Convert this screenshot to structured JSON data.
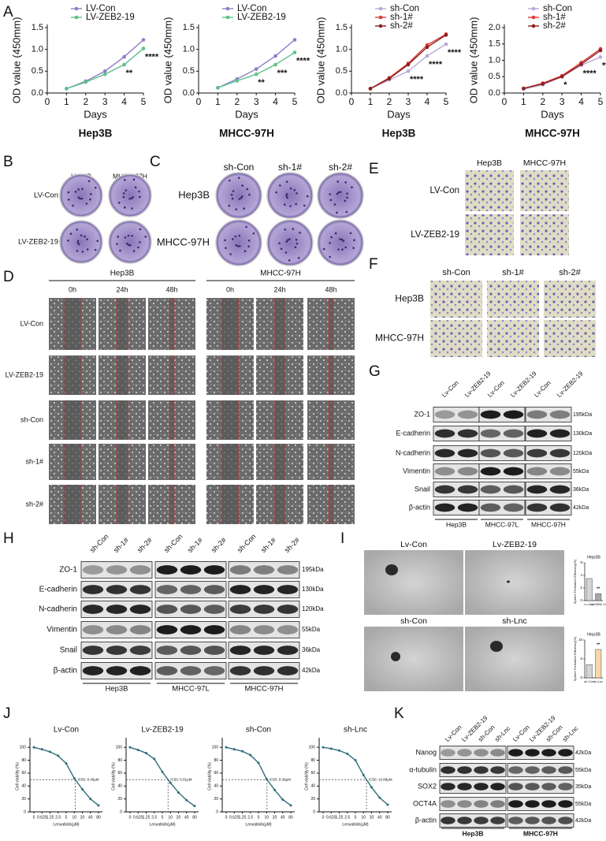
{
  "panel_labels": {
    "a": "A",
    "b": "B",
    "c": "C",
    "d": "D",
    "e": "E",
    "f": "F",
    "g": "G",
    "h": "H",
    "i": "I",
    "j": "J",
    "k": "K"
  },
  "chart_data": [
    {
      "type": "line",
      "caption": "Hep3B",
      "xlabel": "Days",
      "ylabel": "OD value (450mm)",
      "x": [
        1,
        2,
        3,
        4,
        5
      ],
      "xlim": [
        0,
        5
      ],
      "xticks": [
        0,
        1,
        2,
        3,
        4,
        5
      ],
      "ylim": [
        0,
        1.5
      ],
      "yticks": [
        {
          "value": 0,
          "label": "0.0"
        },
        {
          "value": 0.5,
          "label": "0.5"
        },
        {
          "value": 1,
          "label": "1.0"
        },
        {
          "value": 1.5,
          "label": "1.5"
        }
      ],
      "series": [
        {
          "name": "LV-Con",
          "color": "#8b7fc4",
          "values": [
            0.1,
            0.27,
            0.5,
            0.83,
            1.22
          ]
        },
        {
          "name": "LV-ZEB2-19",
          "color": "#5cc08a",
          "values": [
            0.1,
            0.25,
            0.43,
            0.65,
            1.02
          ]
        }
      ],
      "annotations": [
        {
          "x": 4,
          "text": "**"
        },
        {
          "x": 5,
          "text": "****"
        }
      ]
    },
    {
      "type": "line",
      "caption": "MHCC-97H",
      "xlabel": "Days",
      "ylabel": "OD value (450mm)",
      "x": [
        1,
        2,
        3,
        4,
        5
      ],
      "xlim": [
        0,
        5
      ],
      "xticks": [
        0,
        1,
        2,
        3,
        4,
        5
      ],
      "ylim": [
        0,
        1.5
      ],
      "yticks": [
        {
          "value": 0,
          "label": "0.0"
        },
        {
          "value": 0.5,
          "label": "0.5"
        },
        {
          "value": 1,
          "label": "1.0"
        },
        {
          "value": 1.5,
          "label": "1.5"
        }
      ],
      "series": [
        {
          "name": "LV-Con",
          "color": "#8b7fc4",
          "values": [
            0.12,
            0.32,
            0.55,
            0.85,
            1.22
          ]
        },
        {
          "name": "LV-ZEB2-19",
          "color": "#5cc08a",
          "values": [
            0.12,
            0.28,
            0.43,
            0.65,
            0.93
          ]
        }
      ],
      "annotations": [
        {
          "x": 3,
          "text": "**"
        },
        {
          "x": 4,
          "text": "***"
        },
        {
          "x": 5,
          "text": "****"
        }
      ]
    },
    {
      "type": "line",
      "caption": "Hep3B",
      "xlabel": "Days",
      "ylabel": "OD value (450mm)",
      "x": [
        1,
        2,
        3,
        4,
        5
      ],
      "xlim": [
        0,
        5
      ],
      "xticks": [
        0,
        1,
        2,
        3,
        4,
        5
      ],
      "ylim": [
        0,
        1.5
      ],
      "yticks": [
        {
          "value": 0,
          "label": "0.0"
        },
        {
          "value": 0.5,
          "label": "0.5"
        },
        {
          "value": 1,
          "label": "1.0"
        },
        {
          "value": 1.5,
          "label": "1.5"
        }
      ],
      "series": [
        {
          "name": "sh-Con",
          "color": "#b8a9d9",
          "values": [
            0.1,
            0.3,
            0.5,
            0.85,
            1.12
          ]
        },
        {
          "name": "sh-1#",
          "color": "#e03a3a",
          "values": [
            0.1,
            0.35,
            0.68,
            1.1,
            1.35
          ]
        },
        {
          "name": "sh-2#",
          "color": "#8b2020",
          "values": [
            0.1,
            0.33,
            0.65,
            1.05,
            1.33
          ]
        }
      ],
      "annotations": [
        {
          "x": 3,
          "text": "****"
        },
        {
          "x": 4,
          "text": "****"
        },
        {
          "x": 5,
          "text": "****"
        }
      ]
    },
    {
      "type": "line",
      "caption": "MHCC-97H",
      "xlabel": "Days",
      "ylabel": "OD value (450mm)",
      "x": [
        1,
        2,
        3,
        4,
        5
      ],
      "xlim": [
        0,
        5
      ],
      "xticks": [
        0,
        1,
        2,
        3,
        4,
        5
      ],
      "ylim": [
        0,
        2
      ],
      "yticks": [
        {
          "value": 0,
          "label": "0.0"
        },
        {
          "value": 0.5,
          "label": "0.5"
        },
        {
          "value": 1,
          "label": "1.0"
        },
        {
          "value": 1.5,
          "label": "1.5"
        },
        {
          "value": 2,
          "label": "2.0"
        }
      ],
      "series": [
        {
          "name": "sh-Con",
          "color": "#b8a9d9",
          "values": [
            0.12,
            0.25,
            0.5,
            0.85,
            1.1
          ]
        },
        {
          "name": "sh-1#",
          "color": "#e03a3a",
          "values": [
            0.14,
            0.3,
            0.53,
            0.93,
            1.35
          ]
        },
        {
          "name": "sh-2#",
          "color": "#8b2020",
          "values": [
            0.14,
            0.28,
            0.5,
            0.88,
            1.3
          ]
        }
      ],
      "annotations": [
        {
          "x": 3,
          "text": "*"
        },
        {
          "x": 4,
          "text": "****"
        },
        {
          "x": 5,
          "text": "****"
        }
      ]
    },
    {
      "type": "bar",
      "title": "Hep3B",
      "ylabel": "Sphere Formation Efficiency(%)",
      "categories": [
        "Lv-Con",
        "Lv-ZEB2-19"
      ],
      "values": [
        3.5,
        1.1
      ],
      "colors": [
        "#d4d4d4",
        "#a8a8a8"
      ],
      "ylim": [
        0,
        6
      ],
      "yticks": [
        0,
        2,
        4,
        6
      ],
      "annotations": [
        {
          "x": "Lv-ZEB2-19",
          "text": "**"
        }
      ]
    },
    {
      "type": "bar",
      "title": "Hep3B",
      "ylabel": "Sphere Formation Efficiency(%)",
      "categories": [
        "sh-Con",
        "sh-Lnc"
      ],
      "values": [
        3.5,
        7.5
      ],
      "colors": [
        "#d4d4d4",
        "#f9d9a8"
      ],
      "ylim": [
        0,
        10
      ],
      "yticks": [
        0,
        5,
        10
      ],
      "annotations": [
        {
          "x": "sh-Lnc",
          "text": "**"
        }
      ]
    },
    {
      "type": "line",
      "title": "Lv-Con",
      "xlabel": "Lenvatinib(μM)",
      "ylabel": "Cell viability (%)",
      "categories": [
        "0",
        "0.625",
        "1.25",
        "2.5",
        "5",
        "10",
        "20",
        "40",
        "80"
      ],
      "values": [
        100,
        97,
        93,
        87,
        75,
        52,
        35,
        20,
        10
      ],
      "color": "#2f6d7a",
      "ylim": [
        0,
        110
      ],
      "yticks": [
        0,
        20,
        40,
        60,
        80,
        100
      ],
      "reference_line": 50,
      "annotation": "IC50: 8.45μM"
    },
    {
      "type": "line",
      "title": "Lv-ZEB2-19",
      "xlabel": "Lenvatinib(μM)",
      "ylabel": "Cell viability (%)",
      "categories": [
        "0",
        "0.625",
        "1.25",
        "2.5",
        "5",
        "10",
        "20",
        "40",
        "80"
      ],
      "values": [
        100,
        96,
        91,
        82,
        62,
        45,
        30,
        18,
        9
      ],
      "color": "#2f6d7a",
      "ylim": [
        0,
        110
      ],
      "yticks": [
        0,
        20,
        40,
        60,
        80,
        100
      ],
      "reference_line": 50,
      "annotation": "IC50: 5.01μM"
    },
    {
      "type": "line",
      "title": "sh-Con",
      "xlabel": "Lenvatinib(μM)",
      "ylabel": "Cell viability (%)",
      "categories": [
        "0",
        "0.625",
        "1.25",
        "2.5",
        "5",
        "10",
        "20",
        "40",
        "80"
      ],
      "values": [
        100,
        97,
        94,
        88,
        76,
        51,
        34,
        19,
        10
      ],
      "color": "#2f6d7a",
      "ylim": [
        0,
        110
      ],
      "yticks": [
        0,
        20,
        40,
        60,
        80,
        100
      ],
      "reference_line": 50,
      "annotation": "IC50: 9.36μM"
    },
    {
      "type": "line",
      "title": "sh-Lnc",
      "xlabel": "Lenvatinib(μM)",
      "ylabel": "Cell viability (%)",
      "categories": [
        "0",
        "0.625",
        "1.25",
        "2.5",
        "5",
        "10",
        "20",
        "40",
        "80"
      ],
      "values": [
        100,
        98,
        95,
        90,
        80,
        57,
        38,
        22,
        11
      ],
      "color": "#2f6d7a",
      "ylim": [
        0,
        110
      ],
      "yticks": [
        0,
        20,
        40,
        60,
        80,
        100
      ],
      "reference_line": 50,
      "annotation": "IC50: 10.89μM"
    }
  ],
  "colony_b": {
    "columns": [
      "Hep3B",
      "MHCC-97H"
    ],
    "rows": [
      "LV-Con",
      "LV-ZEB2-19"
    ]
  },
  "colony_c": {
    "columns": [
      "sh-Con",
      "sh-1#",
      "sh-2#"
    ],
    "rows": [
      "Hep3B",
      "MHCC-97H"
    ]
  },
  "transwell_e": {
    "columns": [
      "Hep3B",
      "MHCC-97H"
    ],
    "rows": [
      "LV-Con",
      "LV-ZEB2-19"
    ]
  },
  "transwell_f": {
    "columns": [
      "sh-Con",
      "sh-1#",
      "sh-2#"
    ],
    "rows": [
      "Hep3B",
      "MHCC-97H"
    ]
  },
  "wound_healing": {
    "groups": [
      "Hep3B",
      "MHCC-97H"
    ],
    "times": [
      "0h",
      "24h",
      "48h"
    ],
    "rows": [
      "LV-Con",
      "LV-ZEB2-19",
      "sh-Con",
      "sh-1#",
      "sh-2#"
    ]
  },
  "western_g": {
    "lanes": [
      "Lv-Con",
      "Lv-ZEB2-19"
    ],
    "groups": [
      "Hep3B",
      "MHCC-97L",
      "MHCC-97H"
    ],
    "proteins": [
      "ZO-1",
      "E-cadherin",
      "N-cadherin",
      "Vimentin",
      "Snail",
      "β-actin"
    ],
    "sizes": [
      "195kDa",
      "130kDa",
      "120kDa",
      "55kDa",
      "36kDa",
      "42kDa"
    ]
  },
  "western_h": {
    "lanes": [
      "sh-Con",
      "sh-1#",
      "sh-2#"
    ],
    "groups": [
      "Hep3B",
      "MHCC-97L",
      "MHCC-97H"
    ],
    "proteins": [
      "ZO-1",
      "E-cadherin",
      "N-cadherin",
      "Vimentin",
      "Snail",
      "β-actin"
    ],
    "sizes": [
      "195kDa",
      "130kDa",
      "120kDa",
      "55kDa",
      "36kDa",
      "42kDa"
    ]
  },
  "western_k": {
    "lanes": [
      "Lv-Con",
      "Lv-ZEB2-19",
      "sh-Con",
      "sh-Lnc"
    ],
    "groups": [
      "Hep3B",
      "MHCC-97H"
    ],
    "proteins": [
      "Nanog",
      "α-tubulin",
      "SOX2",
      "OCT4A",
      "β-actin"
    ],
    "sizes": [
      "42kDa",
      "55kDa",
      "35kDa",
      "55kDa",
      "42kDa"
    ]
  },
  "sphere_images": {
    "labels": [
      "Lv-Con",
      "Lv-ZEB2-19",
      "sh-Con",
      "sh-Lnc"
    ]
  }
}
